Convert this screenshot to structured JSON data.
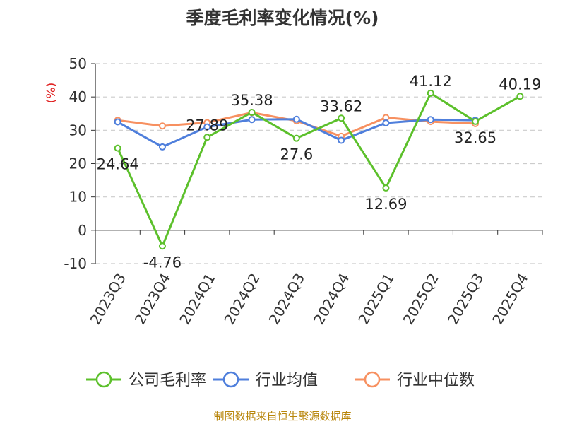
{
  "chart_data": {
    "type": "line",
    "title": "季度毛利率变化情况(%)",
    "ylabel": "(%)",
    "ylim": [
      -10,
      50
    ],
    "yticks": [
      -10,
      0,
      10,
      20,
      30,
      40,
      50
    ],
    "grid": true,
    "legend_position": "bottom",
    "categories": [
      "2023Q3",
      "2023Q4",
      "2024Q1",
      "2024Q2",
      "2024Q3",
      "2024Q4",
      "2025Q1",
      "2025Q2",
      "2025Q3",
      "2025Q4"
    ],
    "series": [
      {
        "name": "公司毛利率",
        "color": "#5cc02b",
        "labeled": true,
        "values": [
          24.64,
          -4.76,
          27.89,
          35.38,
          27.6,
          33.62,
          12.69,
          41.12,
          32.65,
          40.19
        ]
      },
      {
        "name": "行业均值",
        "color": "#4f7fdc",
        "labeled": false,
        "values": [
          32.5,
          25.0,
          31.0,
          33.2,
          33.3,
          27.0,
          32.2,
          33.2,
          33.0,
          null
        ]
      },
      {
        "name": "行业中位数",
        "color": "#f79060",
        "labeled": false,
        "values": [
          33.0,
          31.3,
          32.3,
          35.3,
          32.8,
          28.2,
          33.8,
          32.6,
          32.0,
          null
        ]
      }
    ]
  },
  "source": "制图数据来自恒生聚源数据库"
}
